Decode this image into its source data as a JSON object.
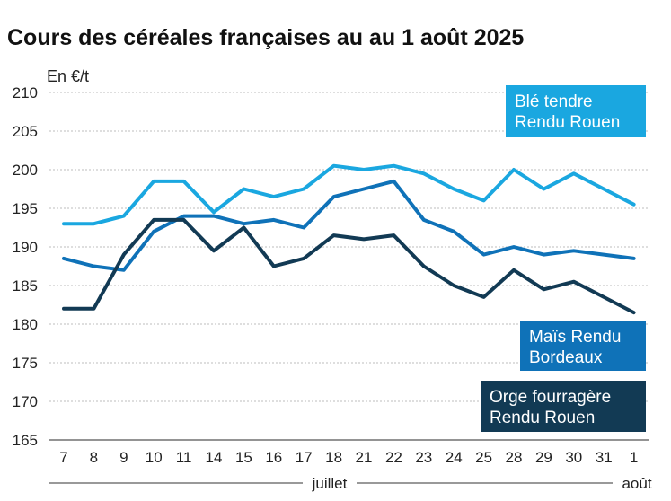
{
  "chart_data": {
    "type": "line",
    "title": "Cours des céréales françaises au au 1 août 2025",
    "ylabel": "En €/t",
    "ylim": [
      165,
      210
    ],
    "yticks": [
      165,
      170,
      175,
      180,
      185,
      190,
      195,
      200,
      205,
      210
    ],
    "grid": true,
    "categories": [
      "7",
      "8",
      "9",
      "10",
      "11",
      "14",
      "15",
      "16",
      "17",
      "18",
      "21",
      "22",
      "23",
      "24",
      "25",
      "28",
      "29",
      "30",
      "31",
      "1"
    ],
    "months": [
      {
        "label": "juillet",
        "from": 0,
        "to": 18
      },
      {
        "label": "août",
        "from": 19,
        "to": 19
      }
    ],
    "series": [
      {
        "name": "Blé tendre Rendu Rouen",
        "label_lines": [
          "Blé tendre",
          "Rendu Rouen"
        ],
        "color": "#1aa7e0",
        "legend_anchor": "top-right",
        "values": [
          193,
          193,
          194,
          198.5,
          198.5,
          194.5,
          197.5,
          196.5,
          197.5,
          200.5,
          200,
          200.5,
          199.5,
          197.5,
          196,
          200,
          197.5,
          199.5,
          197.5,
          195.5
        ]
      },
      {
        "name": "Maïs Rendu Bordeaux",
        "label_lines": [
          "Maïs Rendu",
          "Bordeaux"
        ],
        "color": "#0f72b8",
        "legend_anchor": "middle-right",
        "values": [
          188.5,
          187.5,
          187,
          192,
          194,
          194,
          193,
          193.5,
          192.5,
          196.5,
          197.5,
          198.5,
          193.5,
          192,
          189,
          190,
          189,
          189.5,
          189,
          188.5
        ]
      },
      {
        "name": "Orge fourragère Rendu Rouen",
        "label_lines": [
          "Orge fourragère",
          "Rendu Rouen"
        ],
        "color": "#123a54",
        "legend_anchor": "bottom-right",
        "values": [
          182,
          182,
          189,
          193.5,
          193.5,
          189.5,
          192.5,
          187.5,
          188.5,
          191.5,
          191,
          191.5,
          187.5,
          185,
          183.5,
          187,
          184.5,
          185.5,
          183.5,
          181.5
        ]
      }
    ]
  }
}
